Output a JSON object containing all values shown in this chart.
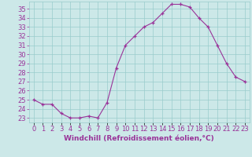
{
  "x": [
    0,
    1,
    2,
    3,
    4,
    5,
    6,
    7,
    8,
    9,
    10,
    11,
    12,
    13,
    14,
    15,
    16,
    17,
    18,
    19,
    20,
    21,
    22,
    23
  ],
  "y": [
    25.0,
    24.5,
    24.5,
    23.5,
    23.0,
    23.0,
    23.2,
    23.0,
    24.7,
    28.5,
    31.0,
    32.0,
    33.0,
    33.5,
    34.5,
    35.5,
    35.5,
    35.2,
    34.0,
    33.0,
    31.0,
    29.0,
    27.5,
    27.0
  ],
  "line_color": "#993399",
  "marker": "+",
  "bg_color": "#cce8e8",
  "grid_color": "#99cccc",
  "xlabel": "Windchill (Refroidissement éolien,°C)",
  "yticks": [
    23,
    24,
    25,
    26,
    27,
    28,
    29,
    30,
    31,
    32,
    33,
    34,
    35
  ],
  "ylim": [
    22.5,
    35.8
  ],
  "xlim": [
    -0.5,
    23.5
  ],
  "xlabel_color": "#993399",
  "tick_color": "#993399",
  "axis_label_fontsize": 6.5,
  "tick_fontsize": 6.0
}
